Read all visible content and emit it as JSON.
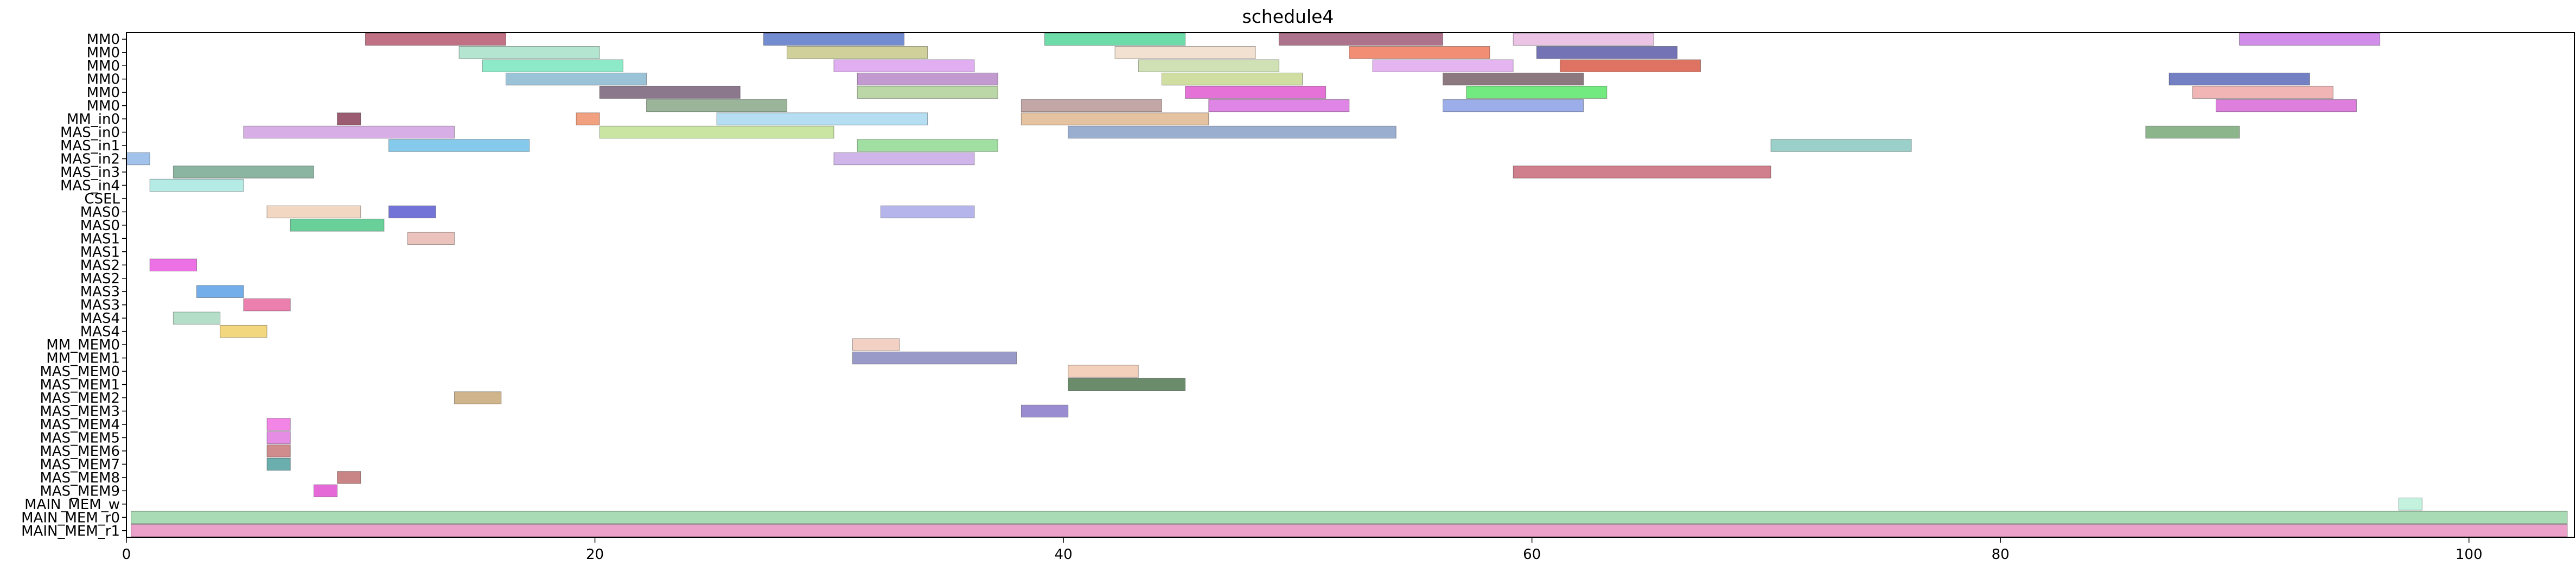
{
  "chart_data": {
    "type": "gantt",
    "title": "schedule4",
    "xlabel": "",
    "ylabel": "",
    "xlim": [
      0,
      104.5
    ],
    "x_ticks": [
      0,
      20,
      40,
      60,
      80,
      100
    ],
    "grid": false,
    "rows": [
      "MM0",
      "MM0",
      "MM0",
      "MM0",
      "MM0",
      "MM0",
      "MM_in0",
      "MAS_in0",
      "MAS_in1",
      "MAS_in2",
      "MAS_in3",
      "MAS_in4",
      "CSEL",
      "MAS0",
      "MAS0",
      "MAS1",
      "MAS1",
      "MAS2",
      "MAS2",
      "MAS3",
      "MAS3",
      "MAS4",
      "MAS4",
      "MM_MEM0",
      "MM_MEM1",
      "MAS_MEM0",
      "MAS_MEM1",
      "MAS_MEM2",
      "MAS_MEM3",
      "MAS_MEM4",
      "MAS_MEM5",
      "MAS_MEM6",
      "MAS_MEM7",
      "MAS_MEM8",
      "MAS_MEM9",
      "MAIN_MEM_w",
      "MAIN_MEM_r0",
      "MAIN_MEM_r1"
    ],
    "tasks": [
      {
        "row": 0,
        "start": 10.2,
        "end": 16.2,
        "color": "#b5586e"
      },
      {
        "row": 0,
        "start": 27.2,
        "end": 33.2,
        "color": "#5a78c8"
      },
      {
        "row": 0,
        "start": 39.2,
        "end": 45.2,
        "color": "#55d69a"
      },
      {
        "row": 0,
        "start": 49.2,
        "end": 56.2,
        "color": "#a05a78"
      },
      {
        "row": 0,
        "start": 59.2,
        "end": 65.2,
        "color": "#e6b8e0"
      },
      {
        "row": 0,
        "start": 90.2,
        "end": 96.2,
        "color": "#c87ae6"
      },
      {
        "row": 1,
        "start": 14.2,
        "end": 20.2,
        "color": "#a6e0c8"
      },
      {
        "row": 1,
        "start": 28.2,
        "end": 34.2,
        "color": "#c8c88a"
      },
      {
        "row": 1,
        "start": 42.2,
        "end": 48.2,
        "color": "#f0dcc8"
      },
      {
        "row": 1,
        "start": 52.2,
        "end": 58.2,
        "color": "#f07a5a"
      },
      {
        "row": 1,
        "start": 60.2,
        "end": 66.2,
        "color": "#5a5aa8"
      },
      {
        "row": 2,
        "start": 15.2,
        "end": 21.2,
        "color": "#78e6c0"
      },
      {
        "row": 2,
        "start": 30.2,
        "end": 36.2,
        "color": "#dca0f0"
      },
      {
        "row": 2,
        "start": 43.2,
        "end": 49.2,
        "color": "#c8dca8"
      },
      {
        "row": 2,
        "start": 53.2,
        "end": 59.2,
        "color": "#e0a8f0"
      },
      {
        "row": 2,
        "start": 61.2,
        "end": 67.2,
        "color": "#d85a48"
      },
      {
        "row": 3,
        "start": 16.2,
        "end": 22.2,
        "color": "#8ab8d0"
      },
      {
        "row": 3,
        "start": 31.2,
        "end": 37.2,
        "color": "#b888c8"
      },
      {
        "row": 3,
        "start": 44.2,
        "end": 50.2,
        "color": "#c8d890"
      },
      {
        "row": 3,
        "start": 56.2,
        "end": 62.2,
        "color": "#786068"
      },
      {
        "row": 3,
        "start": 87.2,
        "end": 93.2,
        "color": "#5a6ab8"
      },
      {
        "row": 4,
        "start": 20.2,
        "end": 26.2,
        "color": "#786078"
      },
      {
        "row": 4,
        "start": 31.2,
        "end": 37.2,
        "color": "#b0d098"
      },
      {
        "row": 4,
        "start": 45.2,
        "end": 51.2,
        "color": "#e05ad0"
      },
      {
        "row": 4,
        "start": 57.2,
        "end": 63.2,
        "color": "#5ae668"
      },
      {
        "row": 4,
        "start": 88.2,
        "end": 94.2,
        "color": "#f0a8a8"
      },
      {
        "row": 5,
        "start": 22.2,
        "end": 28.2,
        "color": "#88a888"
      },
      {
        "row": 5,
        "start": 38.2,
        "end": 44.2,
        "color": "#b89898"
      },
      {
        "row": 5,
        "start": 46.2,
        "end": 52.2,
        "color": "#d870e0"
      },
      {
        "row": 5,
        "start": 56.2,
        "end": 62.2,
        "color": "#8aa0e6"
      },
      {
        "row": 5,
        "start": 89.2,
        "end": 95.2,
        "color": "#d868d8"
      },
      {
        "row": 36,
        "start": 0.2,
        "end": 104.2,
        "color": "#9ad6a8"
      },
      {
        "row": 37,
        "start": 0.2,
        "end": 104.2,
        "color": "#e890c0"
      },
      {
        "row": 6,
        "start": 9.0,
        "end": 10.0,
        "color": "#8a4058"
      },
      {
        "row": 6,
        "start": 19.2,
        "end": 20.2,
        "color": "#f0906a"
      },
      {
        "row": 6,
        "start": 25.2,
        "end": 34.2,
        "color": "#a8d8f0"
      },
      {
        "row": 6,
        "start": 38.2,
        "end": 46.2,
        "color": "#e0b890"
      },
      {
        "row": 7,
        "start": 5.0,
        "end": 14.0,
        "color": "#d0a0e0"
      },
      {
        "row": 7,
        "start": 20.2,
        "end": 30.2,
        "color": "#c0e090"
      },
      {
        "row": 7,
        "start": 40.2,
        "end": 54.2,
        "color": "#88a0c8"
      },
      {
        "row": 7,
        "start": 86.2,
        "end": 90.2,
        "color": "#78a878"
      },
      {
        "row": 8,
        "start": 11.2,
        "end": 17.2,
        "color": "#70c0e8"
      },
      {
        "row": 8,
        "start": 31.2,
        "end": 37.2,
        "color": "#90d890"
      },
      {
        "row": 8,
        "start": 70.2,
        "end": 76.2,
        "color": "#88c8c0"
      },
      {
        "row": 9,
        "start": 0.0,
        "end": 1.0,
        "color": "#90b8e8"
      },
      {
        "row": 9,
        "start": 30.2,
        "end": 36.2,
        "color": "#c8a8e8"
      },
      {
        "row": 10,
        "start": 2.0,
        "end": 8.0,
        "color": "#78a890"
      },
      {
        "row": 10,
        "start": 59.2,
        "end": 70.2,
        "color": "#c86878"
      },
      {
        "row": 11,
        "start": 1.0,
        "end": 5.0,
        "color": "#a8e8e0"
      },
      {
        "row": 13,
        "start": 6.0,
        "end": 10.0,
        "color": "#f0d0b8"
      },
      {
        "row": 13,
        "start": 11.2,
        "end": 13.2,
        "color": "#5a5ad0"
      },
      {
        "row": 13,
        "start": 32.2,
        "end": 36.2,
        "color": "#a8a8e8"
      },
      {
        "row": 14,
        "start": 7.0,
        "end": 11.0,
        "color": "#50c888"
      },
      {
        "row": 15,
        "start": 12.0,
        "end": 14.0,
        "color": "#e8b8b0"
      },
      {
        "row": 17,
        "start": 1.0,
        "end": 3.0,
        "color": "#e858e0"
      },
      {
        "row": 19,
        "start": 3.0,
        "end": 5.0,
        "color": "#5aa0e8"
      },
      {
        "row": 20,
        "start": 5.0,
        "end": 7.0,
        "color": "#e868a0"
      },
      {
        "row": 21,
        "start": 2.0,
        "end": 4.0,
        "color": "#a8d8c0"
      },
      {
        "row": 22,
        "start": 4.0,
        "end": 6.0,
        "color": "#f0d068"
      },
      {
        "row": 23,
        "start": 31.0,
        "end": 33.0,
        "color": "#f0c8b8"
      },
      {
        "row": 24,
        "start": 31.0,
        "end": 38.0,
        "color": "#8888c0"
      },
      {
        "row": 25,
        "start": 40.2,
        "end": 43.2,
        "color": "#f0c8b0"
      },
      {
        "row": 26,
        "start": 40.2,
        "end": 45.2,
        "color": "#507850"
      },
      {
        "row": 27,
        "start": 14.0,
        "end": 16.0,
        "color": "#c8a878"
      },
      {
        "row": 28,
        "start": 38.2,
        "end": 40.2,
        "color": "#8878c8"
      },
      {
        "row": 29,
        "start": 6.0,
        "end": 7.0,
        "color": "#f070e0"
      },
      {
        "row": 30,
        "start": 6.0,
        "end": 7.0,
        "color": "#e078e0"
      },
      {
        "row": 31,
        "start": 6.0,
        "end": 7.0,
        "color": "#c87878"
      },
      {
        "row": 32,
        "start": 6.0,
        "end": 7.0,
        "color": "#50a0a0"
      },
      {
        "row": 33,
        "start": 9.0,
        "end": 10.0,
        "color": "#c07070"
      },
      {
        "row": 34,
        "start": 8.0,
        "end": 9.0,
        "color": "#e050d0"
      },
      {
        "row": 35,
        "start": 97.0,
        "end": 98.0,
        "color": "#b8f0d8"
      }
    ]
  }
}
